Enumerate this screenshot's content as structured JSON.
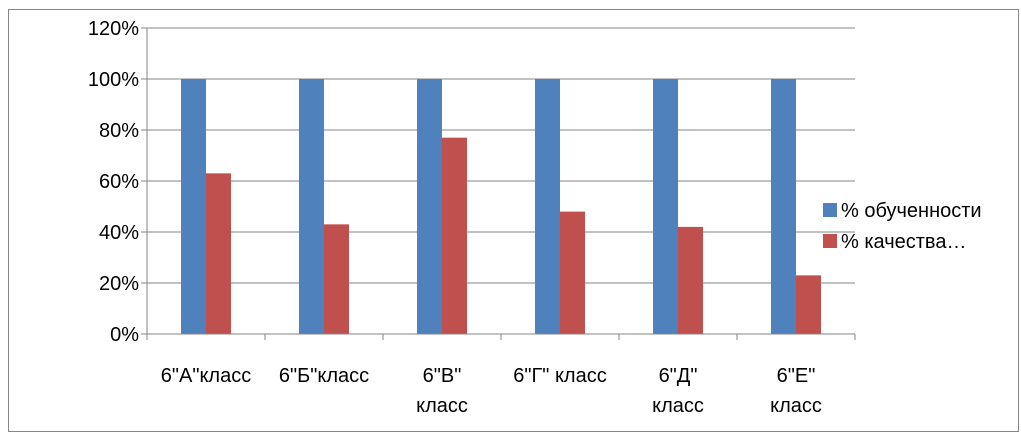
{
  "chart_data": {
    "type": "bar",
    "categories": [
      [
        "6\"А\"класс"
      ],
      [
        "6\"Б\"класс"
      ],
      [
        "6\"В\"",
        "класс"
      ],
      [
        "6\"Г\" класс"
      ],
      [
        "6\"Д\"",
        "класс"
      ],
      [
        "6\"Е\"",
        "класс"
      ]
    ],
    "series": [
      {
        "name": "% обученности",
        "color": "#4f81bd",
        "values": [
          100,
          100,
          100,
          100,
          100,
          100
        ]
      },
      {
        "name": "% качества…",
        "color": "#c0504d",
        "values": [
          63,
          43,
          77,
          48,
          42,
          23
        ]
      }
    ],
    "y_ticks": [
      "0%",
      "20%",
      "40%",
      "60%",
      "80%",
      "100%",
      "120%"
    ],
    "ylim": [
      0,
      120
    ],
    "grid": true,
    "legend": "right"
  }
}
